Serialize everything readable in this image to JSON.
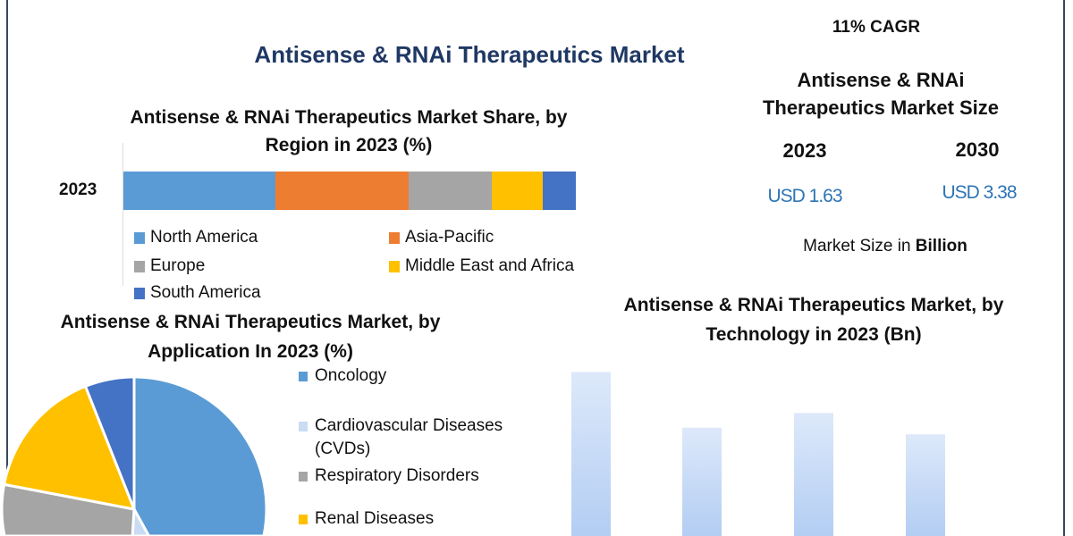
{
  "main_title": "Antisense & RNAi Therapeutics Market",
  "summary": {
    "cagr": "11% CAGR",
    "title": "Antisense & RNAi Therapeutics Market Size",
    "year_start": "2023",
    "year_end": "2030",
    "value_start": "USD 1.63",
    "value_end": "USD 3.38",
    "unit_prefix": "Market Size in ",
    "unit_bold": "Billion"
  },
  "chart_data": [
    {
      "type": "bar",
      "orientation": "horizontal-stacked",
      "title": "Antisense & RNAi Therapeutics Market Share, by Region in 2023 (%)",
      "categories": [
        "2023"
      ],
      "series": [
        {
          "name": "North America",
          "values": [
            33.6
          ],
          "color": "#5b9bd5"
        },
        {
          "name": "Asia-Pacific",
          "values": [
            29.4
          ],
          "color": "#ed7d31"
        },
        {
          "name": "Europe",
          "values": [
            18.4
          ],
          "color": "#a5a5a5"
        },
        {
          "name": "Middle East and Africa",
          "values": [
            11.3
          ],
          "color": "#ffc000"
        },
        {
          "name": "South America",
          "values": [
            7.3
          ],
          "color": "#4472c4"
        }
      ],
      "xlim": [
        0,
        100
      ],
      "legend": "bottom"
    },
    {
      "type": "pie",
      "title": "Antisense & RNAi Therapeutics Market, by Application In 2023 (%)",
      "slices": [
        {
          "name": "Oncology",
          "value": 42,
          "color": "#5b9bd5"
        },
        {
          "name": "Cardiovascular Diseases (CVDs)",
          "value": 9,
          "color": "#c9dcf3"
        },
        {
          "name": "Respiratory Disorders",
          "value": 27,
          "color": "#a5a5a5"
        },
        {
          "name": "Renal Diseases",
          "value": 16,
          "color": "#ffc000"
        },
        {
          "name": "",
          "value": 6,
          "color": "#4472c4"
        }
      ],
      "legend": "right"
    },
    {
      "type": "bar",
      "title": "Antisense & RNAi Therapeutics Market, by Technology in 2023 (Bn)",
      "values": [
        1.0,
        0.66,
        0.75,
        0.62
      ],
      "ylim": [
        0,
        1.1
      ],
      "color": "#bcd4f5"
    }
  ]
}
